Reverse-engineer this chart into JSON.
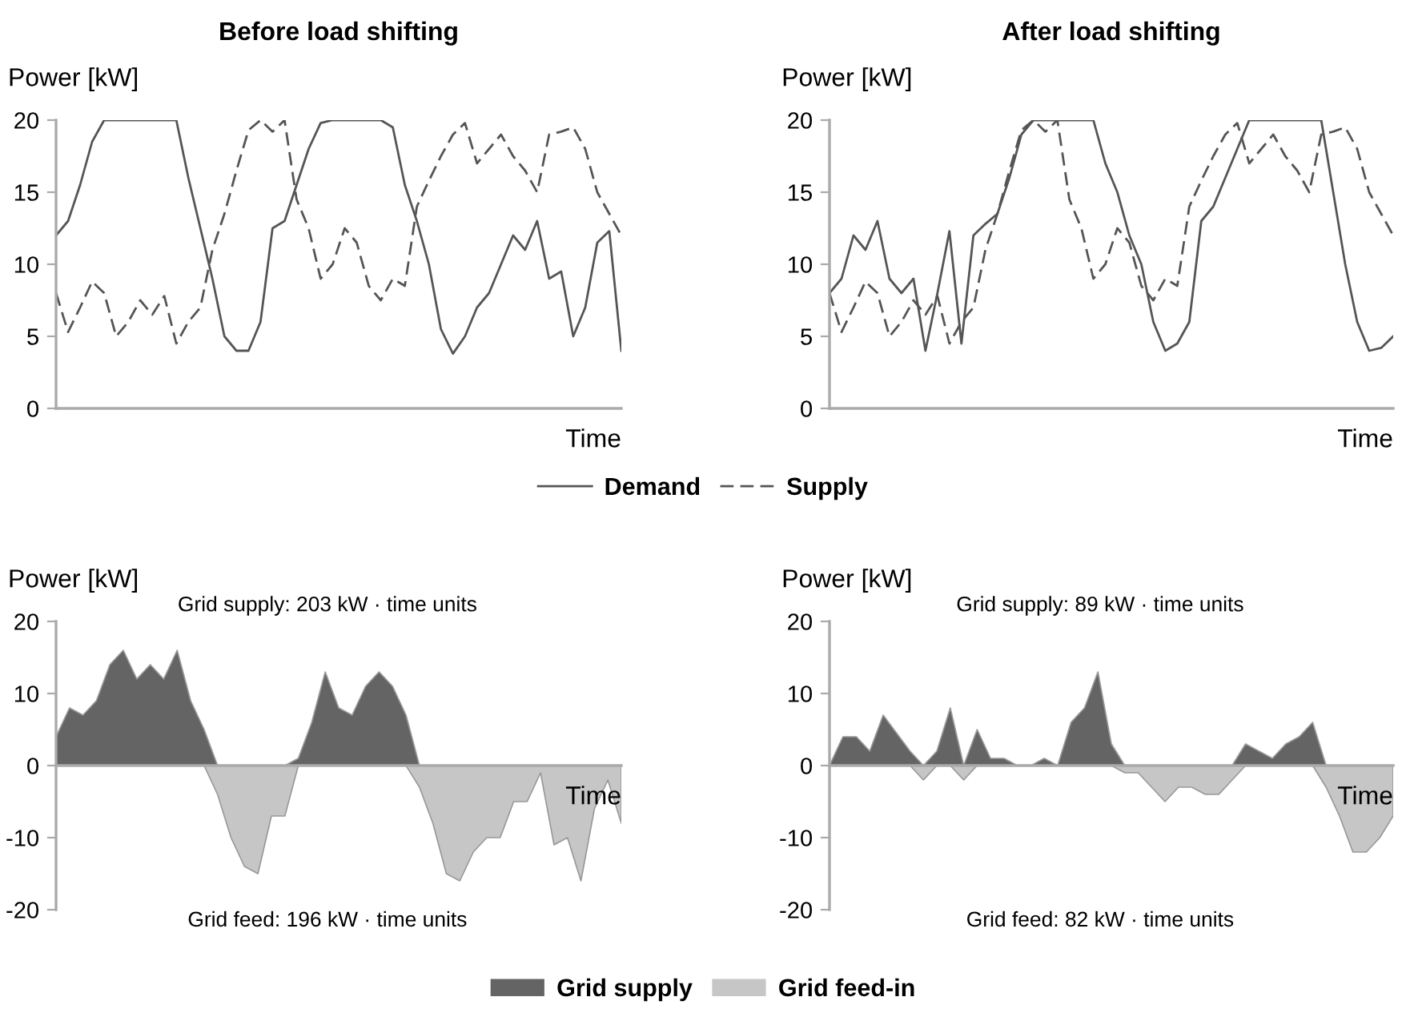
{
  "chart_data": [
    {
      "type": "line",
      "title": "Before load shifting",
      "ylabel": "Power [kW]",
      "xlabel": "Time",
      "ylim": [
        0,
        20
      ],
      "yticks": [
        0,
        5,
        10,
        15,
        20
      ],
      "tick_labels": "y",
      "legend": "bottom",
      "categories": [
        null,
        null,
        null,
        null,
        null,
        null,
        null,
        null,
        null,
        null,
        null,
        null,
        null,
        null,
        null,
        null,
        null,
        null,
        null,
        null,
        null,
        null,
        null,
        null,
        null,
        null,
        null,
        null,
        null,
        null,
        null,
        null,
        null,
        null,
        null,
        null,
        null,
        null,
        null,
        null,
        null,
        null,
        null,
        null,
        null,
        null,
        null,
        null
      ],
      "series": [
        {
          "name": "Demand",
          "color": "#555555",
          "line_style": "solid",
          "values": [
            12,
            13,
            15.5,
            18.5,
            20,
            20,
            20,
            20,
            20,
            20,
            20,
            16,
            12.5,
            9,
            5,
            4,
            4,
            6,
            12.5,
            13,
            15.5,
            18,
            19.8,
            20,
            20,
            20,
            20,
            20,
            19.5,
            15.5,
            13,
            10,
            5.5,
            3.8,
            5,
            7,
            8,
            10,
            12,
            11,
            13,
            9,
            9.5,
            5,
            7,
            11.5,
            12.3,
            4
          ]
        },
        {
          "name": "Supply",
          "color": "#555555",
          "line_style": "dashed",
          "values": [
            8,
            5.3,
            7,
            8.8,
            8,
            5,
            6,
            7.5,
            6.5,
            7.8,
            4.5,
            6,
            7,
            11,
            13.5,
            16.5,
            19.3,
            20,
            19.2,
            20,
            14.5,
            12.5,
            9,
            10,
            12.5,
            11.5,
            8.5,
            7.5,
            9,
            8.5,
            14,
            15.8,
            17.5,
            19,
            19.8,
            17,
            18,
            19,
            17.5,
            16.5,
            15,
            19,
            19.2,
            19.5,
            18,
            15,
            13.5,
            12
          ]
        }
      ]
    },
    {
      "type": "line",
      "title": "After load shifting",
      "ylabel": "Power [kW]",
      "xlabel": "Time",
      "ylim": [
        0,
        20
      ],
      "yticks": [
        0,
        5,
        10,
        15,
        20
      ],
      "tick_labels": "y",
      "categories": [
        null,
        null,
        null,
        null,
        null,
        null,
        null,
        null,
        null,
        null,
        null,
        null,
        null,
        null,
        null,
        null,
        null,
        null,
        null,
        null,
        null,
        null,
        null,
        null,
        null,
        null,
        null,
        null,
        null,
        null,
        null,
        null,
        null,
        null,
        null,
        null,
        null,
        null,
        null,
        null,
        null,
        null,
        null,
        null,
        null,
        null,
        null,
        null
      ],
      "series": [
        {
          "color": "#555555",
          "line_style": "solid",
          "values": [
            8,
            9,
            12,
            11,
            13,
            9,
            8,
            9,
            4,
            8,
            12.3,
            4.5,
            12,
            12.8,
            13.5,
            16,
            19,
            20,
            20,
            20,
            20,
            20,
            20,
            17,
            15,
            12,
            10,
            6,
            4,
            4.5,
            6,
            13,
            14,
            16,
            18,
            20,
            20,
            20,
            20,
            20,
            20,
            20,
            15,
            10,
            6,
            4,
            4.2,
            5
          ]
        },
        {
          "color": "#555555",
          "line_style": "dashed",
          "values": [
            8,
            5.3,
            7,
            8.8,
            8,
            5,
            6,
            7.5,
            6.5,
            7.8,
            4.5,
            6,
            7,
            11,
            13.5,
            16.5,
            19.3,
            20,
            19.2,
            20,
            14.5,
            12.5,
            9,
            10,
            12.5,
            11.5,
            8.5,
            7.5,
            9,
            8.5,
            14,
            15.8,
            17.5,
            19,
            19.8,
            17,
            18,
            19,
            17.5,
            16.5,
            15,
            19,
            19.2,
            19.5,
            18,
            15,
            13.5,
            12
          ]
        }
      ]
    },
    {
      "type": "area",
      "ylabel": "Power [kW]",
      "xlabel": "Time",
      "ylim": [
        -20,
        20
      ],
      "yticks": [
        -20,
        -10,
        0,
        10,
        20
      ],
      "tick_labels": "y",
      "legend": "bottom",
      "annotations": [
        "Grid supply: 203 kW · time units",
        "Grid feed: 196 kW · time units"
      ],
      "categories": [
        null,
        null,
        null,
        null,
        null,
        null,
        null,
        null,
        null,
        null,
        null,
        null,
        null,
        null,
        null,
        null,
        null,
        null,
        null,
        null,
        null,
        null,
        null,
        null,
        null,
        null,
        null,
        null,
        null,
        null,
        null,
        null,
        null,
        null,
        null,
        null,
        null,
        null,
        null,
        null,
        null,
        null,
        null
      ],
      "series": [
        {
          "name": "Grid supply",
          "color": "#646464",
          "values": [
            4,
            8,
            7,
            9,
            14,
            16,
            12,
            14,
            12,
            16,
            9,
            5,
            0,
            0,
            0,
            0,
            0,
            0,
            1,
            6,
            13,
            8,
            7,
            11,
            13,
            11,
            7,
            0,
            0,
            0,
            0,
            0,
            0,
            0,
            0,
            0,
            0,
            0,
            0,
            0,
            0,
            0,
            0
          ]
        },
        {
          "name": "Grid feed-in",
          "color": "#c6c6c6",
          "values": [
            0,
            0,
            0,
            0,
            0,
            0,
            0,
            0,
            0,
            0,
            0,
            0,
            -4,
            -10,
            -14,
            -15,
            -7,
            -7,
            0,
            0,
            0,
            0,
            0,
            0,
            0,
            0,
            0,
            -3,
            -8,
            -15,
            -16,
            -12,
            -10,
            -10,
            -5,
            -5,
            -1,
            -11,
            -10,
            -16,
            -6,
            -2,
            -8
          ]
        }
      ]
    },
    {
      "type": "area",
      "ylabel": "Power [kW]",
      "xlabel": "Time",
      "ylim": [
        -20,
        20
      ],
      "yticks": [
        -20,
        -10,
        0,
        10,
        20
      ],
      "tick_labels": "y",
      "annotations": [
        "Grid supply: 89 kW · time units",
        "Grid feed: 82 kW · time units"
      ],
      "categories": [
        null,
        null,
        null,
        null,
        null,
        null,
        null,
        null,
        null,
        null,
        null,
        null,
        null,
        null,
        null,
        null,
        null,
        null,
        null,
        null,
        null,
        null,
        null,
        null,
        null,
        null,
        null,
        null,
        null,
        null,
        null,
        null,
        null,
        null,
        null,
        null,
        null,
        null,
        null,
        null,
        null,
        null,
        null
      ],
      "series": [
        {
          "color": "#646464",
          "values": [
            0,
            4,
            4,
            2,
            7,
            4.5,
            2,
            0,
            2,
            8,
            0,
            5,
            1,
            1,
            0,
            0,
            1,
            0,
            6,
            8,
            13,
            3,
            0,
            0,
            0,
            0,
            0,
            0,
            0,
            0,
            0,
            3,
            2,
            1,
            3,
            4,
            6,
            0,
            0,
            0,
            0,
            0,
            0
          ]
        },
        {
          "color": "#c6c6c6",
          "values": [
            0,
            0,
            0,
            0,
            0,
            0,
            0,
            -2,
            0,
            0,
            -2,
            0,
            0,
            0,
            0,
            0,
            0,
            0,
            0,
            0,
            0,
            0,
            -1,
            -1,
            -3,
            -5,
            -3,
            -3,
            -4,
            -4,
            -2,
            0,
            0,
            0,
            0,
            0,
            0,
            -3,
            -7,
            -12,
            -12,
            -10,
            -7
          ]
        }
      ]
    }
  ]
}
